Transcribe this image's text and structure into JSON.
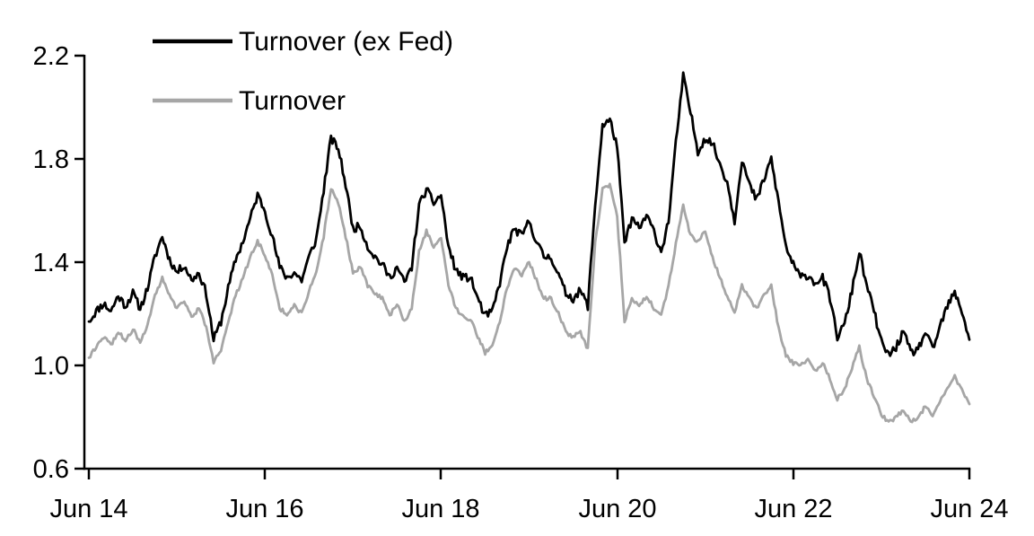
{
  "chart_data": {
    "type": "line",
    "title": "",
    "xlabel": "",
    "ylabel": "",
    "x_start": "Jun 2014",
    "x_end": "Jun 2024",
    "x_interval": "monthly",
    "x_tick_labels": [
      "Jun 14",
      "Jun 16",
      "Jun 18",
      "Jun 20",
      "Jun 22",
      "Jun 24"
    ],
    "y_tick_labels": [
      "2.2",
      "1.8",
      "1.4",
      "1.0",
      "0.6"
    ],
    "y_ticks": [
      2.2,
      1.8,
      1.4,
      1.0,
      0.6
    ],
    "ylim": [
      0.6,
      2.2
    ],
    "grid": false,
    "legend_position": "top-left",
    "background_color": "#ffffff",
    "axis_color": "#000000",
    "series": [
      {
        "name": "Turnover (ex Fed)",
        "color": "#000000",
        "values": [
          1.17,
          1.21,
          1.24,
          1.21,
          1.27,
          1.23,
          1.28,
          1.22,
          1.3,
          1.42,
          1.5,
          1.41,
          1.36,
          1.39,
          1.33,
          1.36,
          1.28,
          1.1,
          1.17,
          1.3,
          1.41,
          1.48,
          1.57,
          1.66,
          1.6,
          1.5,
          1.38,
          1.34,
          1.36,
          1.33,
          1.42,
          1.49,
          1.68,
          1.88,
          1.84,
          1.7,
          1.53,
          1.54,
          1.46,
          1.42,
          1.39,
          1.34,
          1.38,
          1.32,
          1.38,
          1.62,
          1.68,
          1.63,
          1.66,
          1.46,
          1.37,
          1.34,
          1.34,
          1.26,
          1.19,
          1.21,
          1.32,
          1.46,
          1.53,
          1.5,
          1.56,
          1.48,
          1.42,
          1.42,
          1.35,
          1.28,
          1.26,
          1.29,
          1.23,
          1.62,
          1.93,
          1.95,
          1.85,
          1.47,
          1.57,
          1.53,
          1.58,
          1.52,
          1.44,
          1.56,
          1.86,
          2.12,
          1.98,
          1.83,
          1.88,
          1.86,
          1.78,
          1.71,
          1.56,
          1.8,
          1.7,
          1.64,
          1.72,
          1.8,
          1.63,
          1.46,
          1.39,
          1.34,
          1.35,
          1.32,
          1.34,
          1.26,
          1.11,
          1.16,
          1.29,
          1.44,
          1.31,
          1.21,
          1.09,
          1.04,
          1.07,
          1.13,
          1.05,
          1.06,
          1.13,
          1.06,
          1.15,
          1.23,
          1.28,
          1.21,
          1.1
        ]
      },
      {
        "name": "Turnover",
        "color": "#a6a6a6",
        "values": [
          1.03,
          1.07,
          1.11,
          1.08,
          1.13,
          1.1,
          1.14,
          1.09,
          1.16,
          1.27,
          1.34,
          1.27,
          1.22,
          1.25,
          1.19,
          1.22,
          1.15,
          1.01,
          1.06,
          1.17,
          1.27,
          1.34,
          1.42,
          1.48,
          1.43,
          1.35,
          1.22,
          1.2,
          1.23,
          1.2,
          1.29,
          1.36,
          1.5,
          1.69,
          1.63,
          1.5,
          1.36,
          1.38,
          1.31,
          1.28,
          1.26,
          1.19,
          1.24,
          1.17,
          1.22,
          1.44,
          1.52,
          1.46,
          1.5,
          1.31,
          1.22,
          1.19,
          1.18,
          1.11,
          1.05,
          1.07,
          1.17,
          1.3,
          1.38,
          1.35,
          1.4,
          1.33,
          1.26,
          1.26,
          1.2,
          1.13,
          1.11,
          1.13,
          1.06,
          1.47,
          1.68,
          1.7,
          1.58,
          1.17,
          1.26,
          1.23,
          1.27,
          1.22,
          1.19,
          1.31,
          1.47,
          1.62,
          1.5,
          1.48,
          1.52,
          1.42,
          1.34,
          1.27,
          1.2,
          1.31,
          1.26,
          1.22,
          1.27,
          1.31,
          1.14,
          1.04,
          1.01,
          1.0,
          1.02,
          0.98,
          1.01,
          0.95,
          0.87,
          0.91,
          0.99,
          1.07,
          0.95,
          0.88,
          0.81,
          0.78,
          0.8,
          0.83,
          0.78,
          0.8,
          0.84,
          0.81,
          0.86,
          0.91,
          0.96,
          0.9,
          0.85
        ]
      }
    ],
    "layout": {
      "plot_x_range": [
        99,
        1080
      ],
      "plot_y_range": [
        62,
        522
      ],
      "line_width": 2.8,
      "noise_amplitude": [
        0.016,
        0.008
      ],
      "subdivisions": 5,
      "noise_seed": 11
    }
  }
}
